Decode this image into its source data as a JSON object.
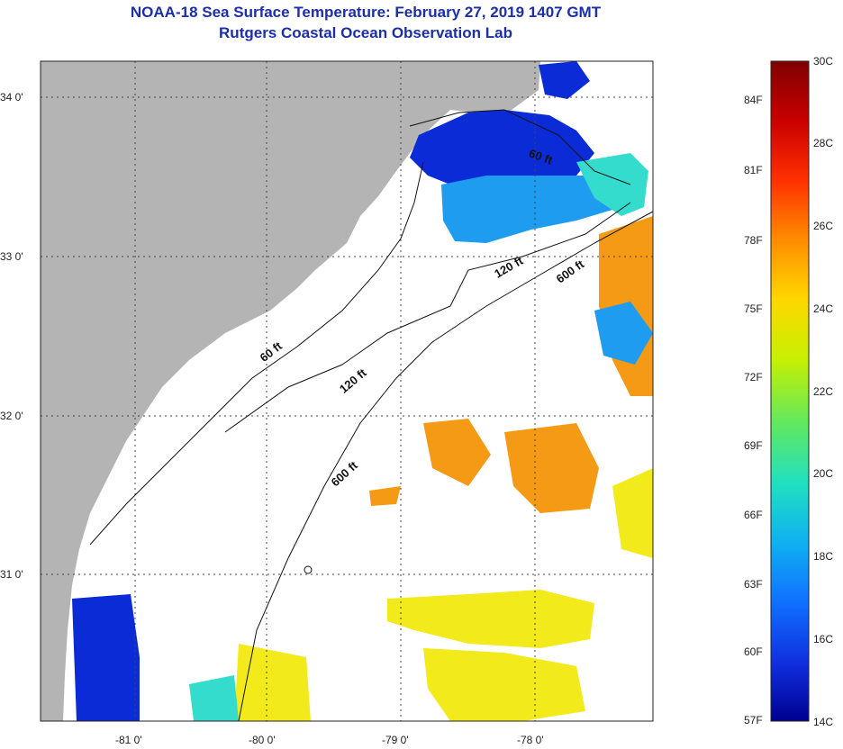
{
  "title": "NOAA-18 Sea Surface Temperature:  February 27, 2019 1407 GMT",
  "subtitle": "Rutgers Coastal Ocean Observation Lab",
  "map": {
    "lat_ticks": [
      "34 0'",
      "33 0'",
      "32 0'",
      "31 0'"
    ],
    "lon_ticks": [
      "-81 0'",
      "-80 0'",
      "-79 0'",
      "-78 0'"
    ],
    "contour_labels": [
      "60 ft",
      "120 ft",
      "120 ft",
      "600 ft",
      "600 ft",
      "60 ft"
    ],
    "colors": {
      "land": "#b4b4b4",
      "no_data": "#ffffff",
      "cold": "#0a2bd6",
      "cool": "#1e9cf0",
      "cyan": "#33dccc",
      "yellow": "#f2ea1a",
      "orange": "#f59a14"
    }
  },
  "colorbar": {
    "fahrenheit_labels": [
      "84F",
      "81F",
      "78F",
      "75F",
      "72F",
      "69F",
      "66F",
      "63F",
      "60F",
      "57F"
    ],
    "celsius_labels": [
      "30C",
      "28C",
      "26C",
      "24C",
      "22C",
      "20C",
      "18C",
      "16C",
      "14C"
    ],
    "gradient": [
      "#800000",
      "#c80000",
      "#ff3000",
      "#ff8c00",
      "#ffd700",
      "#c8f000",
      "#60e860",
      "#20e0c0",
      "#10b0f0",
      "#1070ff",
      "#1030e0",
      "#000090"
    ]
  }
}
